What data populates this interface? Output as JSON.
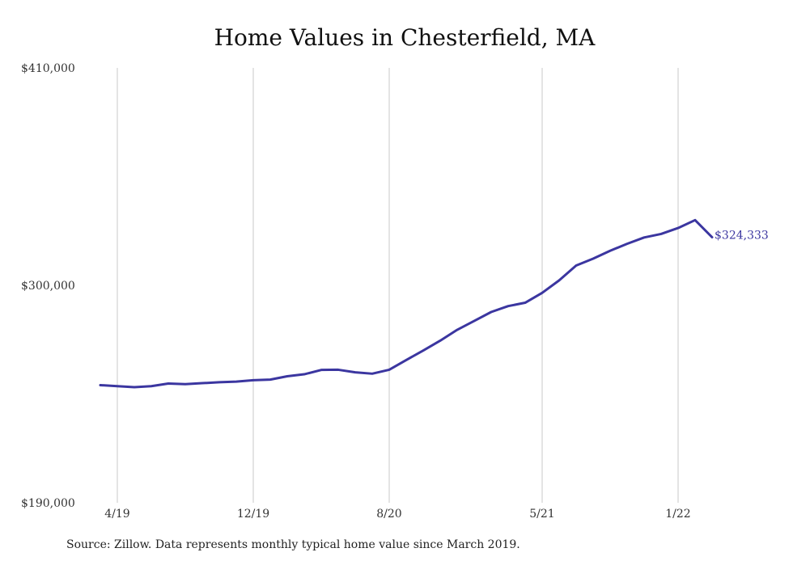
{
  "chart_data": {
    "type": "line",
    "title": "Home Values in Chesterfield, MA",
    "xlabel": "",
    "ylabel": "",
    "ylim": [
      190000,
      410000
    ],
    "y_ticks": [
      "$410,000",
      "$300,000",
      "$190,000"
    ],
    "y_tick_values": [
      410000,
      300000,
      190000
    ],
    "x_ticks": [
      "4/19",
      "12/19",
      "8/20",
      "5/21",
      "1/22"
    ],
    "x_tick_dates": [
      "2019-04",
      "2019-12",
      "2020-08",
      "2021-05",
      "2022-01"
    ],
    "grid": {
      "vertical": true,
      "horizontal": false
    },
    "series": [
      {
        "color": "#3b36a0",
        "x": [
          "2019-03",
          "2019-04",
          "2019-05",
          "2019-06",
          "2019-07",
          "2019-08",
          "2019-09",
          "2019-10",
          "2019-11",
          "2019-12",
          "2020-01",
          "2020-02",
          "2020-03",
          "2020-04",
          "2020-05",
          "2020-06",
          "2020-07",
          "2020-08",
          "2020-09",
          "2020-10",
          "2020-11",
          "2020-12",
          "2021-01",
          "2021-02",
          "2021-03",
          "2021-04",
          "2021-05",
          "2021-06",
          "2021-07",
          "2021-08",
          "2021-09",
          "2021-10",
          "2021-11",
          "2021-12",
          "2022-01",
          "2022-02",
          "2022-03"
        ],
        "values": [
          249500,
          249000,
          248500,
          249000,
          250300,
          250000,
          250500,
          251000,
          251300,
          252000,
          252300,
          254000,
          255000,
          257200,
          257300,
          256000,
          255300,
          257300,
          262200,
          267000,
          272000,
          277500,
          282000,
          286500,
          289500,
          291200,
          296200,
          302500,
          310000,
          313500,
          317500,
          321000,
          324200,
          326000,
          329000,
          333000,
          324333
        ]
      }
    ],
    "end_label": "$324,333",
    "source_note": "Source: Zillow. Data represents monthly typical home value since March 2019."
  }
}
